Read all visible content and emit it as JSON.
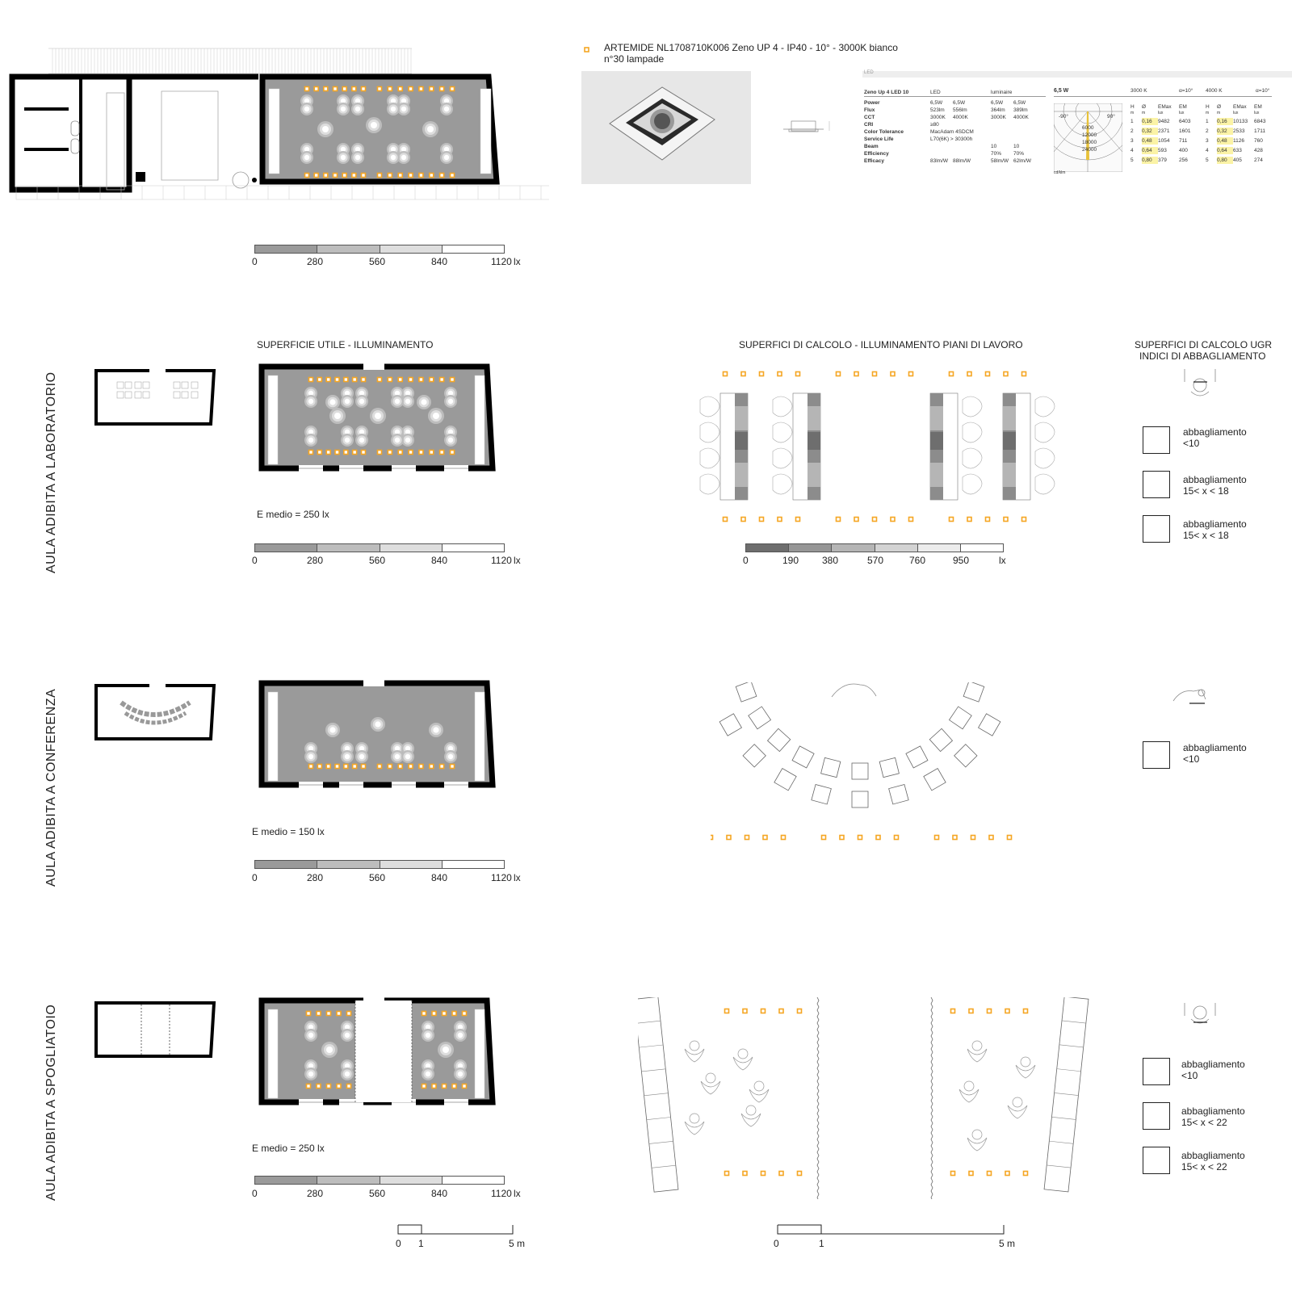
{
  "header": {
    "product_line1": "ARTEMIDE NL1708710K006 Zeno UP 4 - IP40 - 10° - 3000K bianco",
    "product_line2": "n°30 lampade",
    "bar_label": "LED"
  },
  "spec_table": {
    "title": "Zeno Up 4 LED 10",
    "col_led": "LED",
    "col_luminaire": "luminaire",
    "rows": [
      {
        "k": "Power",
        "a": "6,5W",
        "b": "6,5W",
        "c": "6,5W",
        "d": "6,5W"
      },
      {
        "k": "Flux",
        "a": "523lm",
        "b": "556lm",
        "c": "364lm",
        "d": "389lm"
      },
      {
        "k": "CCT",
        "a": "3000K",
        "b": "4000K",
        "c": "3000K",
        "d": "4000K"
      },
      {
        "k": "CRI",
        "a": "≥80",
        "b": "",
        "c": "",
        "d": ""
      },
      {
        "k": "Color Tolerance",
        "a": "MacAdam 4SDCM",
        "b": "",
        "c": "",
        "d": ""
      },
      {
        "k": "Service Life",
        "a": "L70(6K) > 30300h",
        "b": "",
        "c": "",
        "d": ""
      },
      {
        "k": "Beam",
        "a": "",
        "b": "",
        "c": "10",
        "d": "10"
      },
      {
        "k": "Efficiency",
        "a": "",
        "b": "",
        "c": "70%",
        "d": "70%"
      },
      {
        "k": "Efficacy",
        "a": "83lm/W",
        "b": "88lm/W",
        "c": "58lm/W",
        "d": "62lm/W"
      }
    ]
  },
  "photometric": {
    "power": "6,5 W",
    "angle_left": "-90°",
    "angle_right": "90°",
    "values": [
      "6000",
      "12000",
      "18000",
      "24000"
    ],
    "unit": "cd/klm",
    "group_3000": "3000 K",
    "group_4000": "4000 K",
    "alpha": "α=10°",
    "headers": [
      "H",
      "Ø",
      "EMax",
      "EM"
    ],
    "units": [
      "m",
      "m",
      "lux",
      "lux"
    ],
    "rows_3000": [
      [
        "1",
        "0,16",
        "9482",
        "6403"
      ],
      [
        "2",
        "0,32",
        "2371",
        "1601"
      ],
      [
        "3",
        "0,48",
        "1054",
        "711"
      ],
      [
        "4",
        "0,64",
        "593",
        "400"
      ],
      [
        "5",
        "0,80",
        "379",
        "256"
      ]
    ],
    "rows_4000": [
      [
        "1",
        "0,16",
        "10133",
        "6843"
      ],
      [
        "2",
        "0,32",
        "2533",
        "1711"
      ],
      [
        "3",
        "0,48",
        "1126",
        "760"
      ],
      [
        "4",
        "0,64",
        "633",
        "428"
      ],
      [
        "5",
        "0,80",
        "405",
        "274"
      ]
    ]
  },
  "legend_main": {
    "ticks": [
      "0",
      "280",
      "560",
      "840",
      "1120"
    ],
    "unit": "lx",
    "colors": [
      "#9a9a9a",
      "#bdbdbd",
      "#dedede",
      "#ffffff"
    ]
  },
  "legend_work": {
    "ticks": [
      "0",
      "190",
      "380",
      "570",
      "760",
      "950"
    ],
    "unit": "lx",
    "colors": [
      "#6e6e6e",
      "#969696",
      "#b5b5b5",
      "#d3d3d3",
      "#ececec",
      "#ffffff"
    ]
  },
  "sections": {
    "lab": {
      "side_title": "AULA ADIBITA A LABORATORIO",
      "title_surface": "SUPERFICIE UTILE - ILLUMINAMENTO",
      "title_calc": "SUPERFICI DI CALCOLO - ILLUMINAMENTO PIANI DI LAVORO",
      "title_ugr_1": "SUPERFICI DI CALCOLO UGR",
      "title_ugr_2": "INDICI DI ABBAGLIAMENTO",
      "e_medio": "E medio = 250 lx",
      "ugr": [
        {
          "l1": "abbagliamento",
          "l2": "<10"
        },
        {
          "l1": "abbagliamento",
          "l2": "15< x < 18"
        },
        {
          "l1": "abbagliamento",
          "l2": "15< x < 18"
        }
      ]
    },
    "conf": {
      "side_title": "AULA ADIBITA A CONFERENZA",
      "e_medio": "E medio = 150 lx",
      "ugr": [
        {
          "l1": "abbagliamento",
          "l2": "<10"
        }
      ]
    },
    "spog": {
      "side_title": "AULA ADIBITA A SPOGLIATOIO",
      "e_medio": "E medio = 250 lx",
      "ugr": [
        {
          "l1": "abbagliamento",
          "l2": "<10"
        },
        {
          "l1": "abbagliamento",
          "l2": "15< x < 22"
        },
        {
          "l1": "abbagliamento",
          "l2": "15< x < 22"
        }
      ]
    }
  },
  "scale": {
    "zero": "0",
    "one": "1",
    "five": "5 m"
  },
  "colors": {
    "lamp": "#f5a623",
    "wall": "#000000",
    "floor": "#9a9a9a"
  }
}
